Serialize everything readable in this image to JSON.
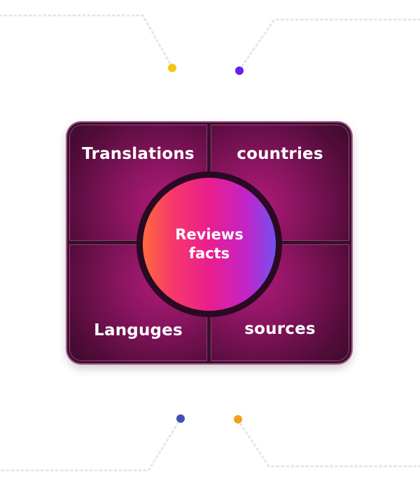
{
  "diagram": {
    "center": {
      "line1": "Reviews",
      "line2": "facts"
    },
    "quadrants": {
      "top_left": "Translations",
      "top_right": "countries",
      "bottom_left": "Languges",
      "bottom_right": "sources"
    }
  },
  "colors": {
    "dot_top_left": "#f5c518",
    "dot_top_right": "#6a1ff0",
    "dot_bottom_left": "#3f51b5",
    "dot_bottom_right": "#f5a020",
    "board_border": "#a45d8e",
    "quadrant_magenta": "#b01a78",
    "center_gradient_start": "#ff6a3d",
    "center_gradient_end": "#7450f0"
  }
}
